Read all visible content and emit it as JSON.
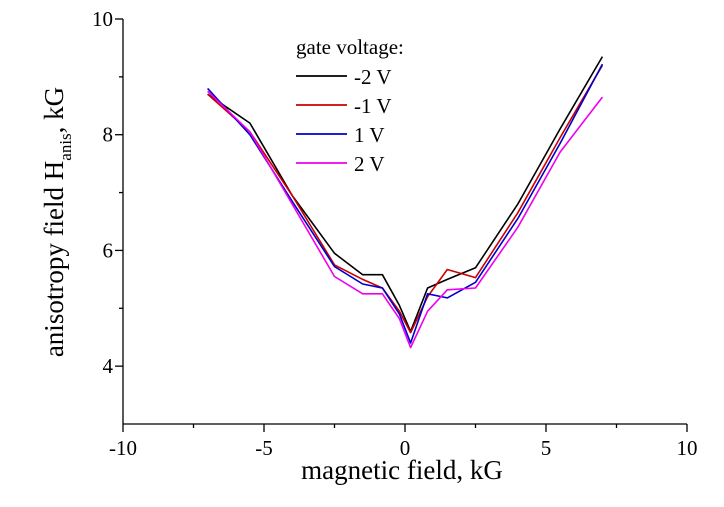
{
  "chart_data": {
    "type": "line",
    "xlabel": "magnetic field, kG",
    "ylabel_main": "anisotropy field H",
    "ylabel_sub": "anis",
    "ylabel_tail": ", kG",
    "xlim": [
      -10,
      10
    ],
    "ylim": [
      3,
      10
    ],
    "xticks": [
      -10,
      -5,
      0,
      5,
      10
    ],
    "xtick_labels": [
      "-10",
      "-5",
      "0",
      "5",
      "10"
    ],
    "yticks": [
      4,
      6,
      8,
      10
    ],
    "ytick_labels": [
      "4",
      "6",
      "8",
      "10"
    ],
    "grid": false,
    "legend": {
      "title": "gate voltage:",
      "placement": "top-center"
    },
    "series": [
      {
        "name": "-2 V",
        "color": "#000000",
        "x": [
          -7,
          -5.5,
          -4,
          -2.5,
          -1.5,
          -0.8,
          -0.2,
          0.2,
          0.8,
          1.5,
          2.5,
          4,
          5.5,
          7
        ],
        "y": [
          8.7,
          8.2,
          6.95,
          5.95,
          5.58,
          5.58,
          5.05,
          4.6,
          5.35,
          5.5,
          5.7,
          6.8,
          8.1,
          9.35
        ]
      },
      {
        "name": "-1 V",
        "color": "#cc0000",
        "x": [
          -7,
          -5.5,
          -4,
          -2.5,
          -1.5,
          -0.8,
          -0.2,
          0.2,
          0.8,
          1.5,
          2.5,
          4,
          5.5,
          7
        ],
        "y": [
          8.7,
          8.05,
          6.95,
          5.75,
          5.5,
          5.35,
          4.95,
          4.58,
          5.2,
          5.67,
          5.53,
          6.65,
          7.95,
          9.2
        ]
      },
      {
        "name": "1 V",
        "color": "#0000cc",
        "x": [
          -7,
          -5.5,
          -4,
          -2.5,
          -1.5,
          -0.8,
          -0.2,
          0.2,
          0.8,
          1.5,
          2.5,
          4,
          5.5,
          7
        ],
        "y": [
          8.8,
          8.0,
          6.85,
          5.72,
          5.42,
          5.35,
          4.9,
          4.4,
          5.25,
          5.18,
          5.45,
          6.55,
          7.85,
          9.22
        ]
      },
      {
        "name": "2 V",
        "color": "#ee00ee",
        "x": [
          -7,
          -5.5,
          -4,
          -2.5,
          -1.5,
          -0.8,
          -0.2,
          0.2,
          0.8,
          1.5,
          2.5,
          4,
          5.5,
          7
        ],
        "y": [
          8.75,
          8.05,
          6.8,
          5.55,
          5.25,
          5.25,
          4.82,
          4.32,
          4.95,
          5.32,
          5.35,
          6.4,
          7.7,
          8.65
        ]
      }
    ]
  }
}
